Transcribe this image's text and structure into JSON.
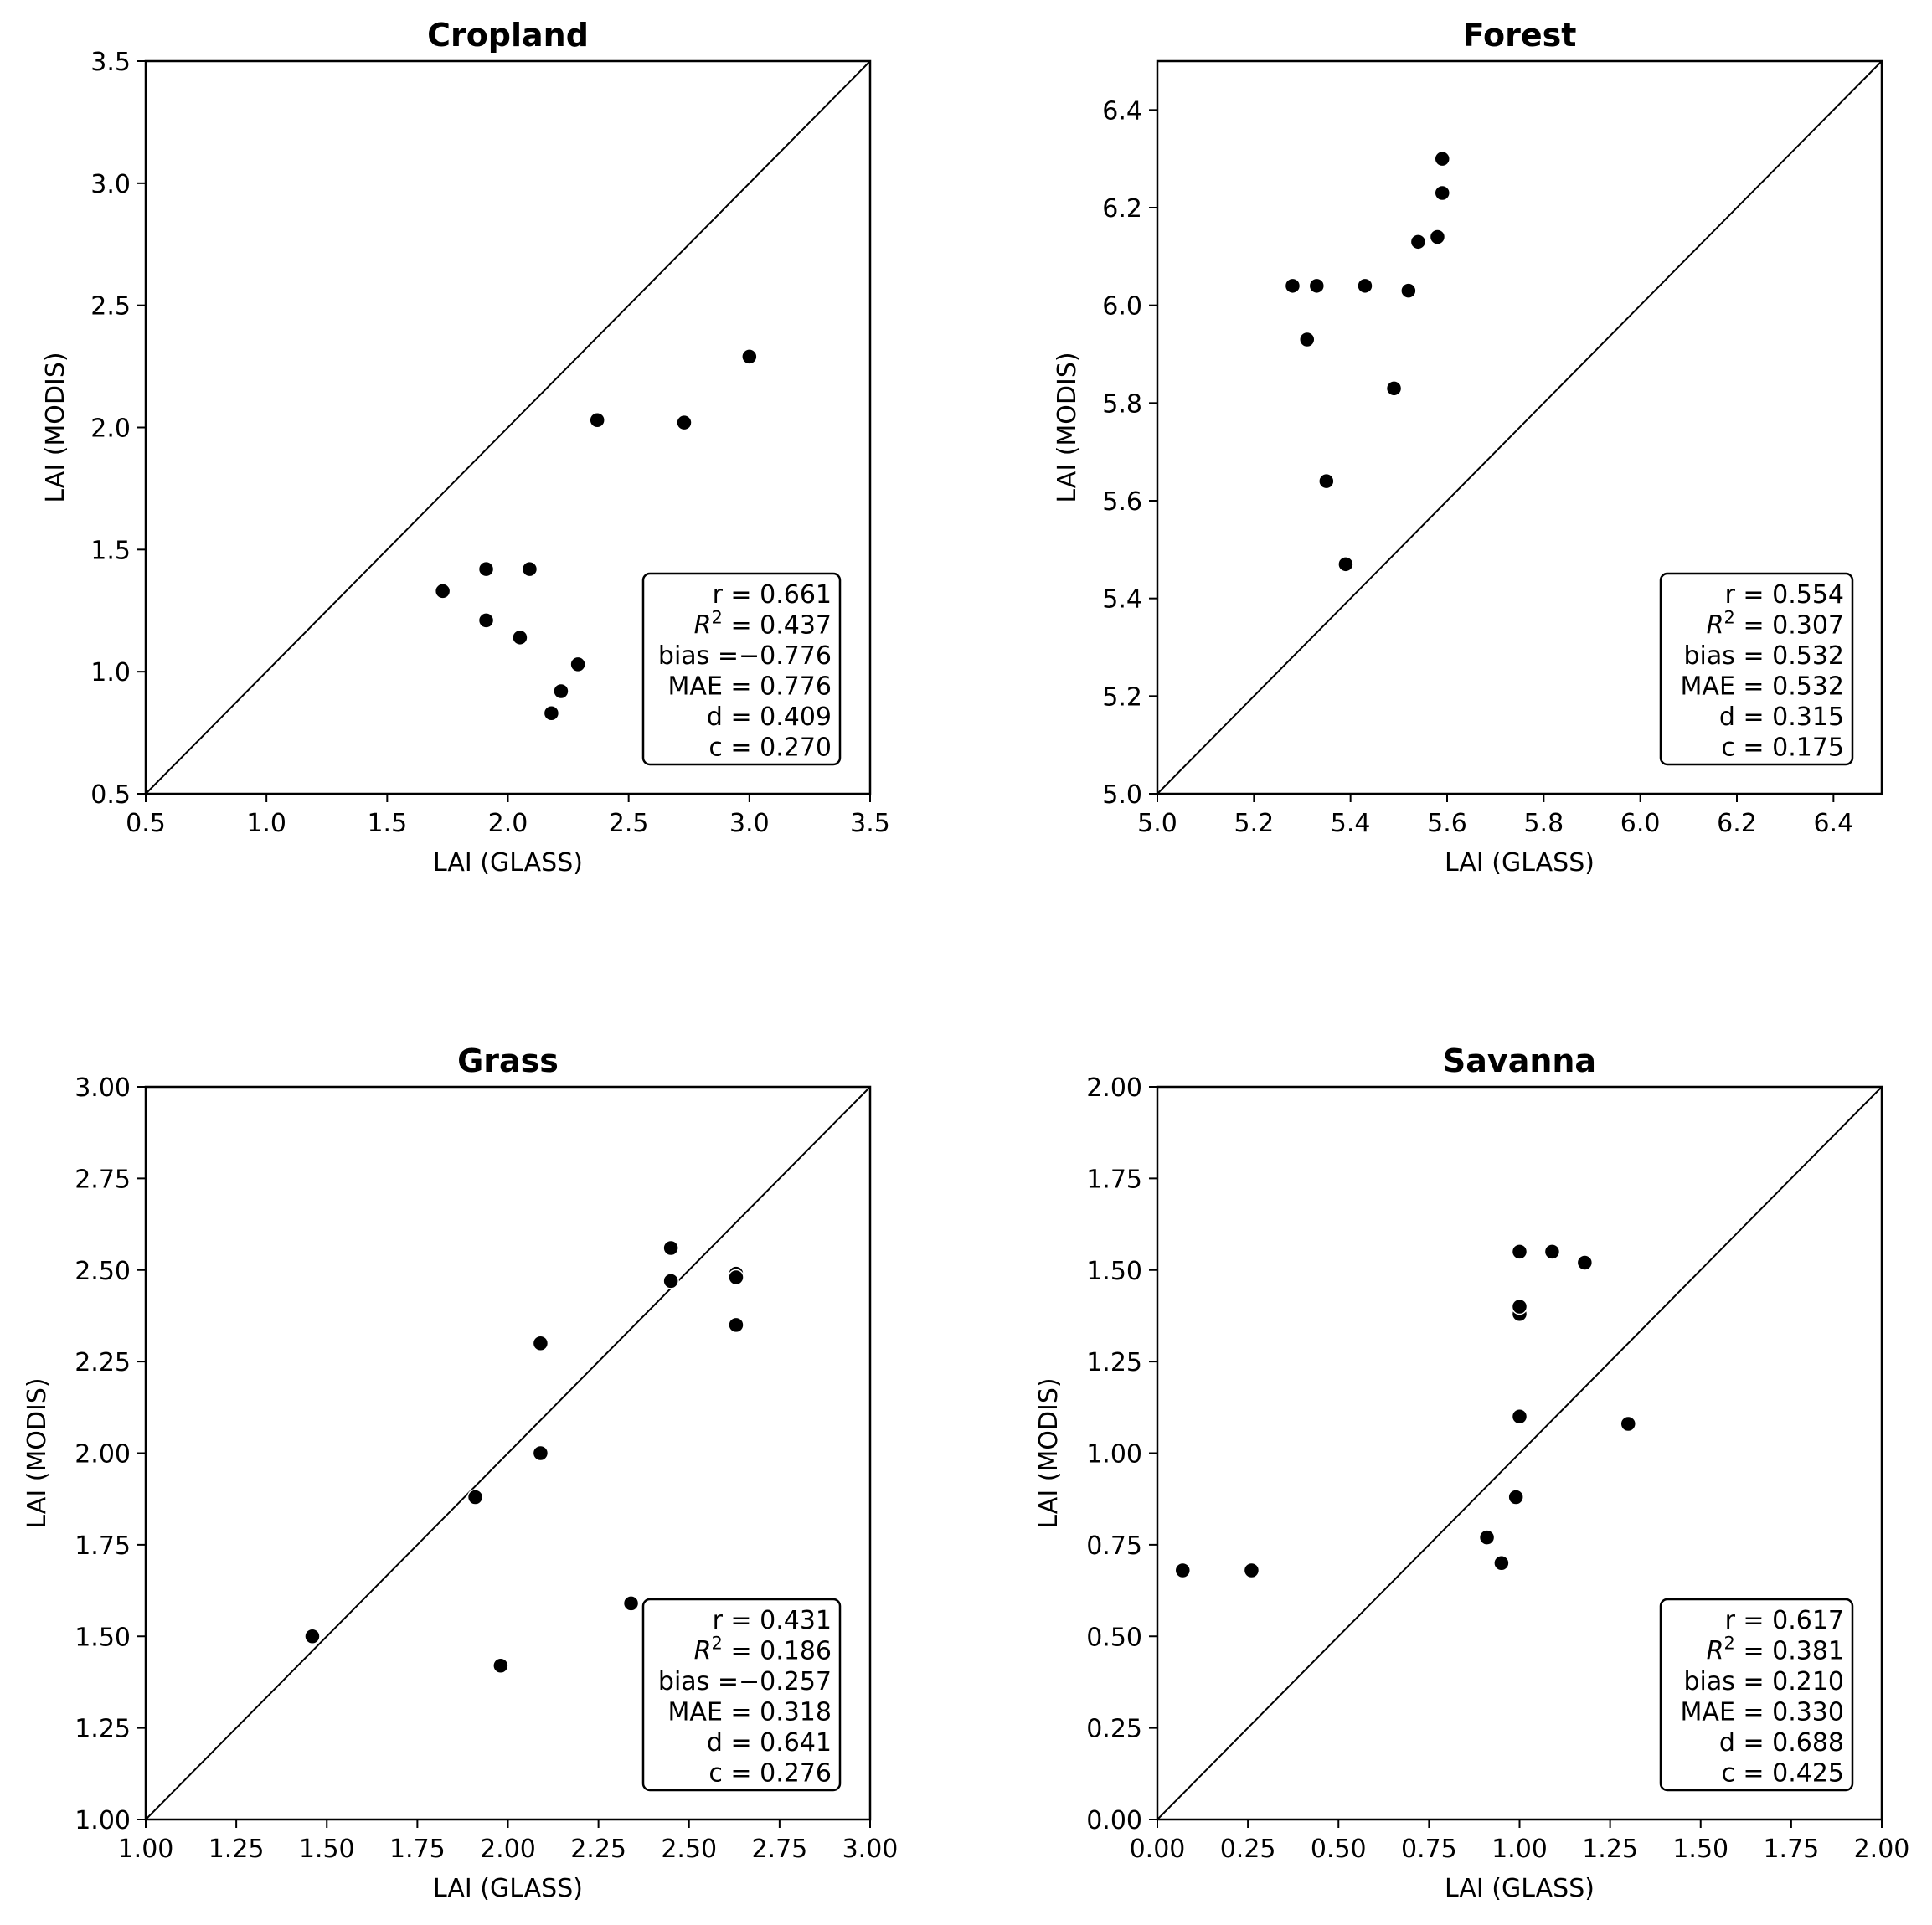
{
  "chart_data": [
    {
      "type": "scatter",
      "title": "Cropland",
      "xlabel": "LAI (GLASS)",
      "ylabel": "LAI (MODIS)",
      "xlim": [
        0.5,
        3.5
      ],
      "ylim": [
        0.5,
        3.5
      ],
      "xticks": [
        "0.5",
        "1.0",
        "1.5",
        "2.0",
        "2.5",
        "3.0",
        "3.5"
      ],
      "yticks": [
        "0.5",
        "1.0",
        "1.5",
        "2.0",
        "2.5",
        "3.0",
        "3.5"
      ],
      "reference_line": "1:1",
      "points": [
        {
          "x": 1.73,
          "y": 1.33
        },
        {
          "x": 1.91,
          "y": 1.42
        },
        {
          "x": 1.91,
          "y": 1.21
        },
        {
          "x": 2.05,
          "y": 1.14
        },
        {
          "x": 2.09,
          "y": 1.42
        },
        {
          "x": 2.18,
          "y": 0.83
        },
        {
          "x": 2.22,
          "y": 0.92
        },
        {
          "x": 2.29,
          "y": 1.03
        },
        {
          "x": 2.37,
          "y": 2.03
        },
        {
          "x": 2.73,
          "y": 2.02
        },
        {
          "x": 3.0,
          "y": 2.29
        }
      ],
      "stats": [
        {
          "label": "r = 0.661",
          "sup": "",
          "rest": ""
        },
        {
          "label": "R",
          "sup": "2",
          "rest": " = 0.437"
        },
        {
          "label": "bias =−0.776",
          "sup": "",
          "rest": ""
        },
        {
          "label": "MAE = 0.776",
          "sup": "",
          "rest": ""
        },
        {
          "label": "d = 0.409",
          "sup": "",
          "rest": ""
        },
        {
          "label": "c = 0.270",
          "sup": "",
          "rest": ""
        }
      ]
    },
    {
      "type": "scatter",
      "title": "Forest",
      "xlabel": "LAI (GLASS)",
      "ylabel": "LAI (MODIS)",
      "xlim": [
        5.0,
        6.5
      ],
      "ylim": [
        5.0,
        6.5
      ],
      "xticks": [
        "5.0",
        "5.2",
        "5.4",
        "5.6",
        "5.8",
        "6.0",
        "6.2",
        "6.4"
      ],
      "yticks": [
        "5.0",
        "5.2",
        "5.4",
        "5.6",
        "5.8",
        "6.0",
        "6.2",
        "6.4"
      ],
      "reference_line": "1:1",
      "points": [
        {
          "x": 5.28,
          "y": 6.04
        },
        {
          "x": 5.31,
          "y": 5.93
        },
        {
          "x": 5.33,
          "y": 6.04
        },
        {
          "x": 5.35,
          "y": 5.64
        },
        {
          "x": 5.39,
          "y": 5.47
        },
        {
          "x": 5.43,
          "y": 6.04
        },
        {
          "x": 5.49,
          "y": 5.83
        },
        {
          "x": 5.52,
          "y": 6.03
        },
        {
          "x": 5.54,
          "y": 6.13
        },
        {
          "x": 5.58,
          "y": 6.14
        },
        {
          "x": 5.59,
          "y": 6.23
        },
        {
          "x": 5.59,
          "y": 6.3
        }
      ],
      "stats": [
        {
          "label": "r = 0.554",
          "sup": "",
          "rest": ""
        },
        {
          "label": "R",
          "sup": "2",
          "rest": " = 0.307"
        },
        {
          "label": "bias = 0.532",
          "sup": "",
          "rest": ""
        },
        {
          "label": "MAE = 0.532",
          "sup": "",
          "rest": ""
        },
        {
          "label": "d = 0.315",
          "sup": "",
          "rest": ""
        },
        {
          "label": "c = 0.175",
          "sup": "",
          "rest": ""
        }
      ]
    },
    {
      "type": "scatter",
      "title": "Grass",
      "xlabel": "LAI (GLASS)",
      "ylabel": "LAI (MODIS)",
      "xlim": [
        1.0,
        3.0
      ],
      "ylim": [
        1.0,
        3.0
      ],
      "xticks": [
        "1.00",
        "1.25",
        "1.50",
        "1.75",
        "2.00",
        "2.25",
        "2.50",
        "2.75",
        "3.00"
      ],
      "yticks": [
        "1.00",
        "1.25",
        "1.50",
        "1.75",
        "2.00",
        "2.25",
        "2.50",
        "2.75",
        "3.00"
      ],
      "reference_line": "1:1",
      "points": [
        {
          "x": 1.46,
          "y": 1.5
        },
        {
          "x": 1.91,
          "y": 1.88
        },
        {
          "x": 1.98,
          "y": 1.42
        },
        {
          "x": 2.09,
          "y": 2.3
        },
        {
          "x": 2.09,
          "y": 2.0
        },
        {
          "x": 2.34,
          "y": 1.59
        },
        {
          "x": 2.45,
          "y": 2.56
        },
        {
          "x": 2.45,
          "y": 2.47
        },
        {
          "x": 2.63,
          "y": 2.49
        },
        {
          "x": 2.63,
          "y": 2.48
        },
        {
          "x": 2.63,
          "y": 2.35
        }
      ],
      "stats": [
        {
          "label": "r = 0.431",
          "sup": "",
          "rest": ""
        },
        {
          "label": "R",
          "sup": "2",
          "rest": " = 0.186"
        },
        {
          "label": "bias =−0.257",
          "sup": "",
          "rest": ""
        },
        {
          "label": "MAE = 0.318",
          "sup": "",
          "rest": ""
        },
        {
          "label": "d = 0.641",
          "sup": "",
          "rest": ""
        },
        {
          "label": "c = 0.276",
          "sup": "",
          "rest": ""
        }
      ]
    },
    {
      "type": "scatter",
      "title": "Savanna",
      "xlabel": "LAI (GLASS)",
      "ylabel": "LAI (MODIS)",
      "xlim": [
        0.0,
        2.0
      ],
      "ylim": [
        0.0,
        2.0
      ],
      "xticks": [
        "0.00",
        "0.25",
        "0.50",
        "0.75",
        "1.00",
        "1.25",
        "1.50",
        "1.75",
        "2.00"
      ],
      "yticks": [
        "0.00",
        "0.25",
        "0.50",
        "0.75",
        "1.00",
        "1.25",
        "1.50",
        "1.75",
        "2.00"
      ],
      "reference_line": "1:1",
      "points": [
        {
          "x": 0.07,
          "y": 0.68
        },
        {
          "x": 0.26,
          "y": 0.68
        },
        {
          "x": 0.91,
          "y": 0.77
        },
        {
          "x": 0.95,
          "y": 0.7
        },
        {
          "x": 0.99,
          "y": 0.88
        },
        {
          "x": 1.0,
          "y": 1.1
        },
        {
          "x": 1.0,
          "y": 1.38
        },
        {
          "x": 1.0,
          "y": 1.4
        },
        {
          "x": 1.0,
          "y": 1.55
        },
        {
          "x": 1.09,
          "y": 1.55
        },
        {
          "x": 1.18,
          "y": 1.52
        },
        {
          "x": 1.3,
          "y": 1.08
        }
      ],
      "stats": [
        {
          "label": "r = 0.617",
          "sup": "",
          "rest": ""
        },
        {
          "label": "R",
          "sup": "2",
          "rest": " = 0.381"
        },
        {
          "label": "bias = 0.210",
          "sup": "",
          "rest": ""
        },
        {
          "label": "MAE = 0.330",
          "sup": "",
          "rest": ""
        },
        {
          "label": "d = 0.688",
          "sup": "",
          "rest": ""
        },
        {
          "label": "c = 0.425",
          "sup": "",
          "rest": ""
        }
      ]
    }
  ]
}
